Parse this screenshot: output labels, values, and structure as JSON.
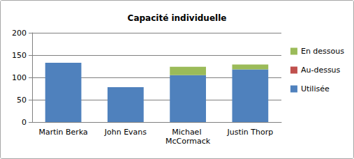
{
  "chart_data": {
    "type": "bar",
    "title": "Capacité individuelle",
    "categories": [
      "Martin Berka",
      "John Evans",
      "Michael McCormack",
      "Justin Thorp"
    ],
    "series": [
      {
        "name": "Utilisée",
        "color": "#4f81bd",
        "values": [
          133,
          78,
          105,
          118
        ]
      },
      {
        "name": "Au-dessus",
        "color": "#c0504d",
        "values": [
          0,
          0,
          0,
          0
        ]
      },
      {
        "name": "En dessous",
        "color": "#9bbb59",
        "values": [
          0,
          0,
          19,
          11
        ]
      }
    ],
    "ylim": [
      0,
      200
    ],
    "yticks": [
      0,
      50,
      100,
      150,
      200
    ],
    "stacked": true,
    "grid": true,
    "legend": "right"
  }
}
